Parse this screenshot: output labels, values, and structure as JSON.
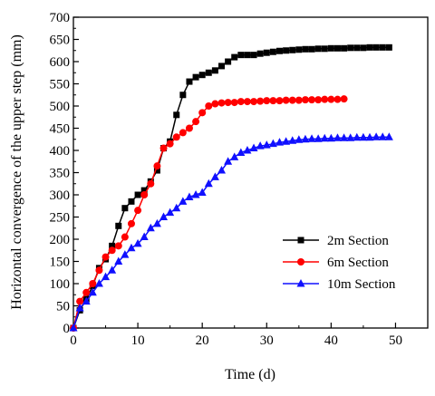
{
  "chart_data": {
    "type": "line",
    "title": "",
    "xlabel": "Time (d)",
    "ylabel": "Horizontal convergence of the upper step (mm)",
    "xlim": [
      0,
      55
    ],
    "ylim": [
      0,
      700
    ],
    "x_ticks": [
      0,
      10,
      20,
      30,
      40,
      50
    ],
    "y_ticks": [
      0,
      50,
      100,
      150,
      200,
      250,
      300,
      350,
      400,
      450,
      500,
      550,
      600,
      650,
      700
    ],
    "grid": false,
    "legend_position": "center-right",
    "series": [
      {
        "name": "2m Section",
        "color": "#000000",
        "marker": "square",
        "points": [
          [
            0,
            0
          ],
          [
            1,
            40
          ],
          [
            2,
            65
          ],
          [
            3,
            95
          ],
          [
            4,
            135
          ],
          [
            5,
            155
          ],
          [
            6,
            185
          ],
          [
            7,
            230
          ],
          [
            8,
            270
          ],
          [
            9,
            285
          ],
          [
            10,
            300
          ],
          [
            11,
            310
          ],
          [
            12,
            330
          ],
          [
            13,
            355
          ],
          [
            14,
            405
          ],
          [
            15,
            420
          ],
          [
            16,
            480
          ],
          [
            17,
            525
          ],
          [
            18,
            555
          ],
          [
            19,
            565
          ],
          [
            20,
            570
          ],
          [
            21,
            575
          ],
          [
            22,
            580
          ],
          [
            23,
            590
          ],
          [
            24,
            600
          ],
          [
            25,
            610
          ],
          [
            26,
            615
          ],
          [
            27,
            615
          ],
          [
            28,
            615
          ],
          [
            29,
            618
          ],
          [
            30,
            620
          ],
          [
            31,
            622
          ],
          [
            32,
            624
          ],
          [
            33,
            625
          ],
          [
            34,
            626
          ],
          [
            35,
            627
          ],
          [
            36,
            628
          ],
          [
            37,
            628
          ],
          [
            38,
            629
          ],
          [
            39,
            629
          ],
          [
            40,
            630
          ],
          [
            41,
            630
          ],
          [
            42,
            630
          ],
          [
            43,
            631
          ],
          [
            44,
            631
          ],
          [
            45,
            631
          ],
          [
            46,
            632
          ],
          [
            47,
            632
          ],
          [
            48,
            632
          ],
          [
            49,
            632
          ]
        ]
      },
      {
        "name": "6m Section",
        "color": "#ff0000",
        "marker": "circle",
        "points": [
          [
            0,
            0
          ],
          [
            1,
            60
          ],
          [
            2,
            80
          ],
          [
            3,
            100
          ],
          [
            4,
            130
          ],
          [
            5,
            160
          ],
          [
            6,
            175
          ],
          [
            7,
            185
          ],
          [
            8,
            205
          ],
          [
            9,
            235
          ],
          [
            10,
            265
          ],
          [
            11,
            300
          ],
          [
            12,
            325
          ],
          [
            13,
            365
          ],
          [
            14,
            405
          ],
          [
            15,
            415
          ],
          [
            16,
            430
          ],
          [
            17,
            440
          ],
          [
            18,
            450
          ],
          [
            19,
            465
          ],
          [
            20,
            485
          ],
          [
            21,
            500
          ],
          [
            22,
            505
          ],
          [
            23,
            507
          ],
          [
            24,
            508
          ],
          [
            25,
            508
          ],
          [
            26,
            510
          ],
          [
            27,
            510
          ],
          [
            28,
            510
          ],
          [
            29,
            511
          ],
          [
            30,
            512
          ],
          [
            31,
            512
          ],
          [
            32,
            512
          ],
          [
            33,
            513
          ],
          [
            34,
            513
          ],
          [
            35,
            513
          ],
          [
            36,
            514
          ],
          [
            37,
            514
          ],
          [
            38,
            514
          ],
          [
            39,
            515
          ],
          [
            40,
            515
          ],
          [
            41,
            515
          ],
          [
            42,
            516
          ]
        ]
      },
      {
        "name": "10m Section",
        "color": "#1010ff",
        "marker": "triangle",
        "points": [
          [
            0,
            0
          ],
          [
            1,
            45
          ],
          [
            2,
            60
          ],
          [
            3,
            80
          ],
          [
            4,
            100
          ],
          [
            5,
            115
          ],
          [
            6,
            130
          ],
          [
            7,
            150
          ],
          [
            8,
            165
          ],
          [
            9,
            180
          ],
          [
            10,
            190
          ],
          [
            11,
            205
          ],
          [
            12,
            225
          ],
          [
            13,
            235
          ],
          [
            14,
            250
          ],
          [
            15,
            260
          ],
          [
            16,
            270
          ],
          [
            17,
            285
          ],
          [
            18,
            295
          ],
          [
            19,
            300
          ],
          [
            20,
            305
          ],
          [
            21,
            325
          ],
          [
            22,
            340
          ],
          [
            23,
            355
          ],
          [
            24,
            375
          ],
          [
            25,
            385
          ],
          [
            26,
            395
          ],
          [
            27,
            400
          ],
          [
            28,
            405
          ],
          [
            29,
            410
          ],
          [
            30,
            412
          ],
          [
            31,
            415
          ],
          [
            32,
            418
          ],
          [
            33,
            420
          ],
          [
            34,
            422
          ],
          [
            35,
            424
          ],
          [
            36,
            425
          ],
          [
            37,
            426
          ],
          [
            38,
            426
          ],
          [
            39,
            427
          ],
          [
            40,
            427
          ],
          [
            41,
            428
          ],
          [
            42,
            428
          ],
          [
            43,
            428
          ],
          [
            44,
            429
          ],
          [
            45,
            429
          ],
          [
            46,
            429
          ],
          [
            47,
            430
          ],
          [
            48,
            430
          ],
          [
            49,
            430
          ]
        ]
      }
    ]
  }
}
